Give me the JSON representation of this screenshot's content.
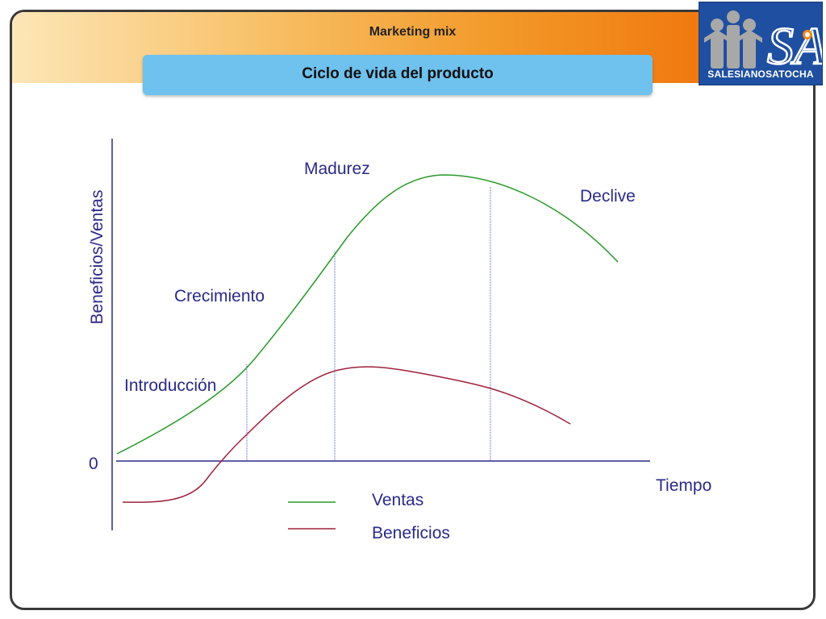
{
  "header": {
    "subtitle": "Marketing mix",
    "title": "Ciclo de vida del producto"
  },
  "logo": {
    "text_bold": "SALESIANOS",
    "text_rest": "ATOCHA",
    "initials": "SA",
    "primary_color": "#1f4fa0",
    "figures_color": "#a8a8a8",
    "accent_color": "#f08a18"
  },
  "diagram": {
    "y_axis_label": "Beneficios/Ventas",
    "x_axis_label": "Tiempo",
    "zero_label": "0",
    "stages": [
      "Introducción",
      "Crecimiento",
      "Madurez",
      "Declive"
    ],
    "legend": [
      {
        "name": "Ventas",
        "color": "#2a9a2a"
      },
      {
        "name": "Beneficios",
        "color": "#a0203a"
      }
    ],
    "axis_color": "#2a2a8a",
    "divider_color": "#4a5acc"
  }
}
